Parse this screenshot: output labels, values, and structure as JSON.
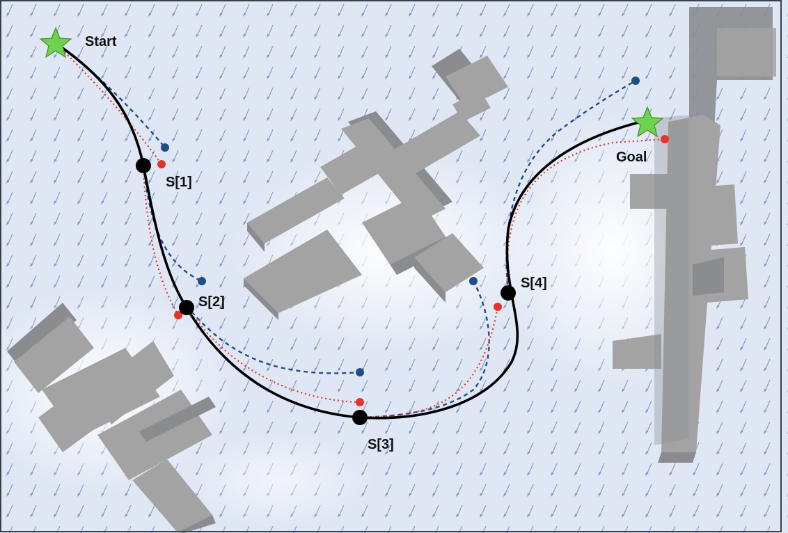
{
  "labels": {
    "start": "Start",
    "goal": "Goal",
    "waypoints": [
      "S[1]",
      "S[2]",
      "S[3]",
      "S[4]"
    ]
  },
  "colors": {
    "background": "#dfe7f4",
    "wind_arrow": "#7b8fbf",
    "building_top": "#a3a3a3",
    "building_side": "#8a8c90",
    "planned_path": "#000000",
    "blue_dashed_path": "#1f4e86",
    "red_dotted_path": "#e4342a",
    "marker_star": "#6ed24c",
    "waypoint": "#000000"
  },
  "legend": {
    "planned_path": "solid-black",
    "predicted_path_blue": "dashed-blue",
    "predicted_path_red": "dotted-red",
    "start_goal_icon": "star-icon",
    "waypoint_icon": "black-dot-icon"
  }
}
